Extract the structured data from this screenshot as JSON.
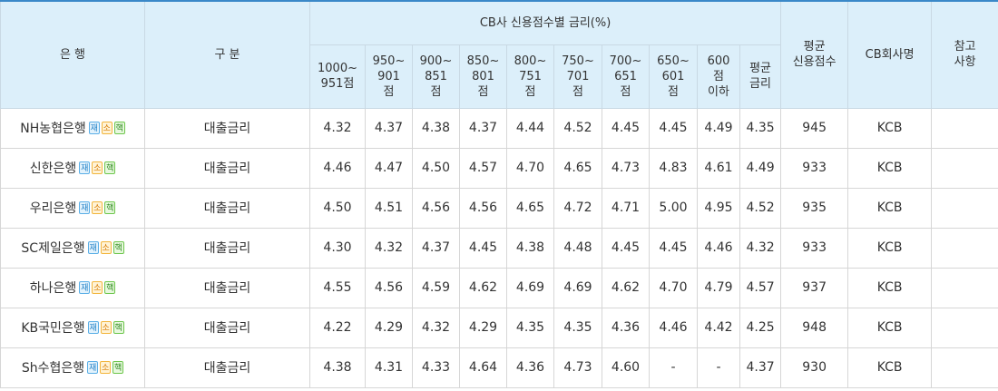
{
  "header": {
    "bank": "은 행",
    "category": "구 분",
    "cb_group": "CB사 신용점수별 금리(%)",
    "ranges": [
      [
        "1000~",
        "951점"
      ],
      [
        "950~",
        "901",
        "점"
      ],
      [
        "900~",
        "851",
        "점"
      ],
      [
        "850~",
        "801",
        "점"
      ],
      [
        "800~",
        "751",
        "점"
      ],
      [
        "750~",
        "701",
        "점"
      ],
      [
        "700~",
        "651",
        "점"
      ],
      [
        "650~",
        "601",
        "점"
      ],
      [
        "600",
        "점",
        "이하"
      ],
      [
        "평균",
        "금리"
      ]
    ],
    "avg_score": [
      "평균",
      "신용점수"
    ],
    "cb_company": "CB회사명",
    "note": [
      "참고",
      "사항"
    ]
  },
  "badges": {
    "jae": "재",
    "so": "소",
    "haek": "핵"
  },
  "badge_colors": {
    "jae": "#1f7fc6",
    "so": "#d67a00",
    "haek": "#2f8a1e"
  },
  "rows": [
    {
      "bank": "NH농협은행",
      "category": "대출금리",
      "rates": [
        "4.32",
        "4.37",
        "4.38",
        "4.37",
        "4.44",
        "4.52",
        "4.45",
        "4.45",
        "4.49",
        "4.35"
      ],
      "avg_score": "945",
      "cb": "KCB",
      "note": ""
    },
    {
      "bank": "신한은행",
      "category": "대출금리",
      "rates": [
        "4.46",
        "4.47",
        "4.50",
        "4.57",
        "4.70",
        "4.65",
        "4.73",
        "4.83",
        "4.61",
        "4.49"
      ],
      "avg_score": "933",
      "cb": "KCB",
      "note": ""
    },
    {
      "bank": "우리은행",
      "category": "대출금리",
      "rates": [
        "4.50",
        "4.51",
        "4.56",
        "4.56",
        "4.65",
        "4.72",
        "4.71",
        "5.00",
        "4.95",
        "4.52"
      ],
      "avg_score": "935",
      "cb": "KCB",
      "note": ""
    },
    {
      "bank": "SC제일은행",
      "category": "대출금리",
      "rates": [
        "4.30",
        "4.32",
        "4.37",
        "4.45",
        "4.38",
        "4.48",
        "4.45",
        "4.45",
        "4.46",
        "4.32"
      ],
      "avg_score": "933",
      "cb": "KCB",
      "note": ""
    },
    {
      "bank": "하나은행",
      "category": "대출금리",
      "rates": [
        "4.55",
        "4.56",
        "4.59",
        "4.62",
        "4.69",
        "4.69",
        "4.62",
        "4.70",
        "4.79",
        "4.57"
      ],
      "avg_score": "937",
      "cb": "KCB",
      "note": ""
    },
    {
      "bank": "KB국민은행",
      "category": "대출금리",
      "rates": [
        "4.22",
        "4.29",
        "4.32",
        "4.29",
        "4.35",
        "4.35",
        "4.36",
        "4.46",
        "4.42",
        "4.25"
      ],
      "avg_score": "948",
      "cb": "KCB",
      "note": ""
    },
    {
      "bank": "Sh수협은행",
      "category": "대출금리",
      "rates": [
        "4.38",
        "4.31",
        "4.33",
        "4.64",
        "4.36",
        "4.73",
        "4.60",
        "-",
        "-",
        "4.37"
      ],
      "avg_score": "930",
      "cb": "KCB",
      "note": ""
    }
  ]
}
